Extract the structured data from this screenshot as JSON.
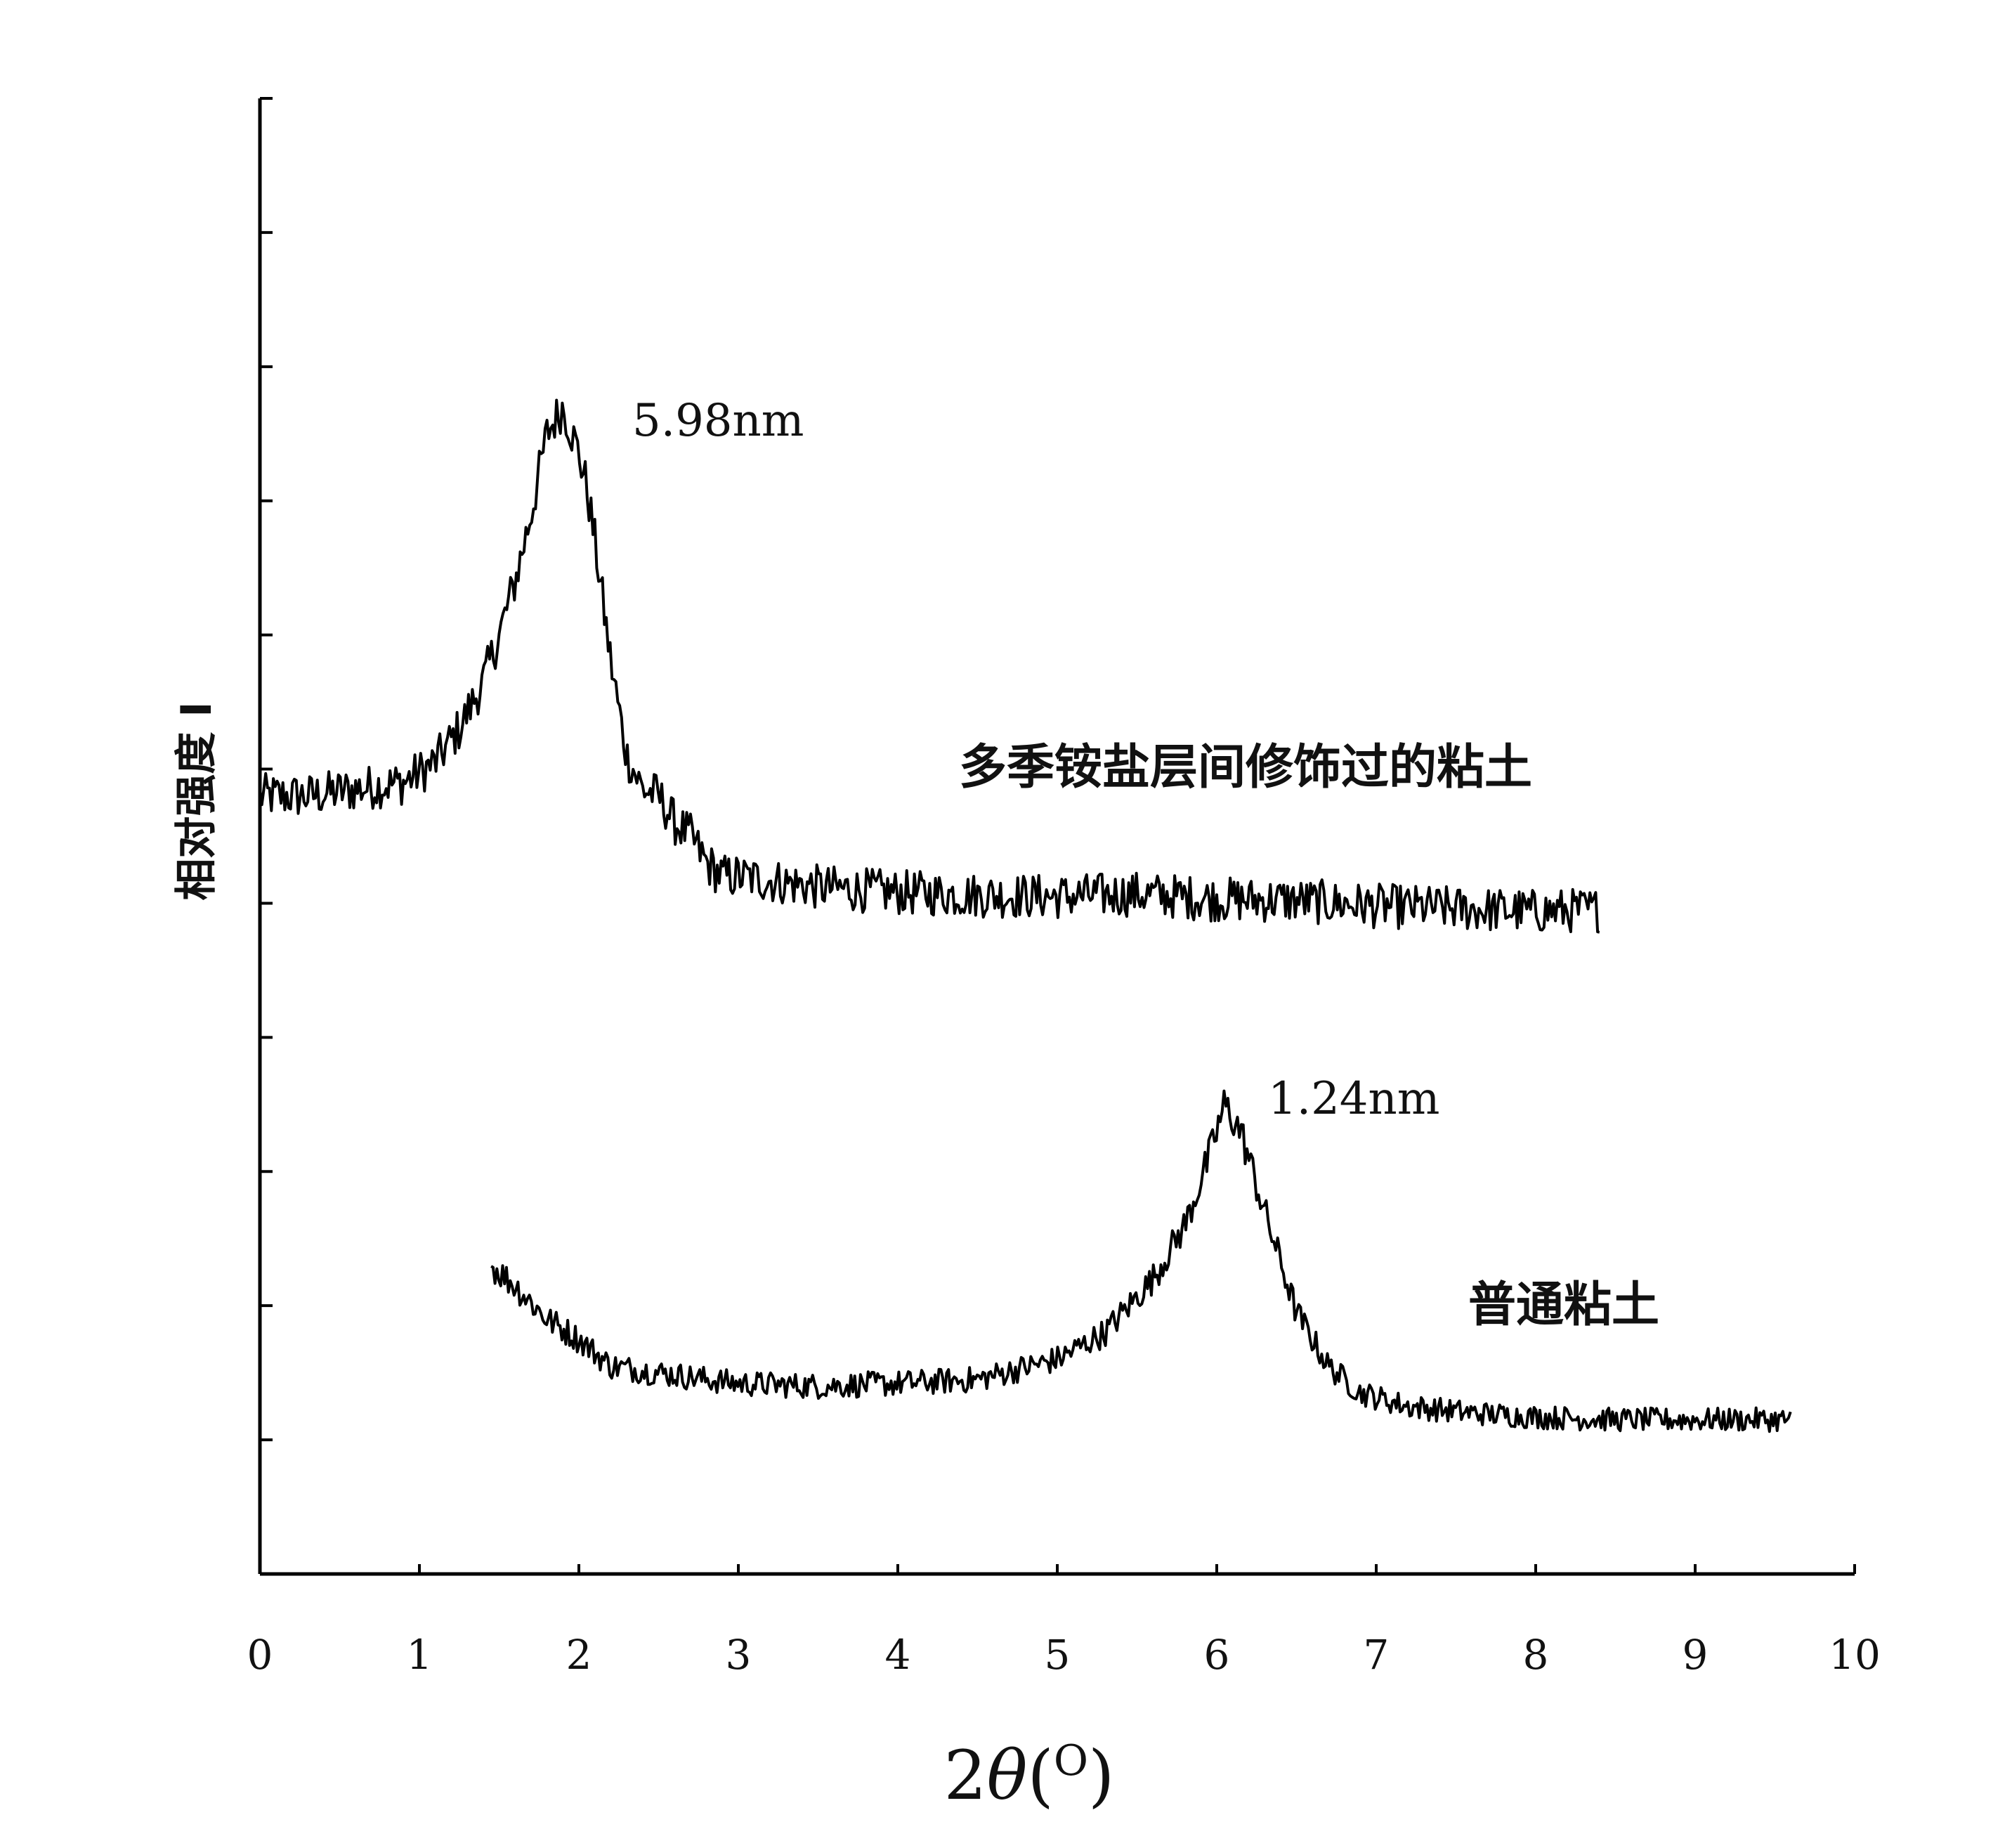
{
  "chart_data": {
    "type": "line",
    "title": "",
    "xlabel": "2θ(O)",
    "ylabel": "相对强度 I",
    "xlim": [
      0,
      10
    ],
    "ylim": [
      0,
      11
    ],
    "x_ticks": [
      "0",
      "1",
      "2",
      "3",
      "4",
      "5",
      "6",
      "7",
      "8",
      "9",
      "10"
    ],
    "y_ticks_count": 11,
    "grid": false,
    "legend": "none",
    "series": [
      {
        "name": "多季铵盐层间修饰过的粘土",
        "label_position": "right",
        "x": [
          0.0,
          0.3,
          0.6,
          0.9,
          1.1,
          1.25,
          1.4,
          1.5,
          1.6,
          1.7,
          1.8,
          1.9,
          2.0,
          2.05,
          2.1,
          2.2,
          2.3,
          2.4,
          2.5,
          2.6,
          2.7,
          2.8,
          2.9,
          3.0,
          3.5,
          4.0,
          4.5,
          5.0,
          5.5,
          6.0,
          6.5,
          7.0,
          7.5,
          8.0,
          8.4
        ],
        "y": [
          5.8,
          5.8,
          5.85,
          5.9,
          6.05,
          6.3,
          6.65,
          7.0,
          7.4,
          7.9,
          8.5,
          8.7,
          8.35,
          8.1,
          7.7,
          6.8,
          6.1,
          5.85,
          5.8,
          5.6,
          5.5,
          5.3,
          5.2,
          5.2,
          5.12,
          5.08,
          5.06,
          5.05,
          5.07,
          5.03,
          5.02,
          4.98,
          4.96,
          4.94,
          4.95
        ],
        "noise": 0.12
      },
      {
        "name": "普通粘土",
        "label_position": "right",
        "x": [
          1.45,
          1.6,
          1.8,
          2.0,
          2.2,
          2.5,
          2.8,
          3.0,
          3.5,
          4.0,
          4.5,
          5.0,
          5.3,
          5.6,
          5.8,
          5.95,
          6.05,
          6.15,
          6.3,
          6.5,
          6.7,
          6.9,
          7.2,
          7.6,
          8.0,
          8.5,
          9.0,
          9.5,
          9.6
        ],
        "y": [
          2.3,
          2.15,
          1.9,
          1.75,
          1.55,
          1.5,
          1.45,
          1.42,
          1.4,
          1.42,
          1.45,
          1.6,
          1.8,
          2.2,
          2.6,
          3.1,
          3.5,
          3.3,
          2.7,
          1.95,
          1.55,
          1.35,
          1.25,
          1.2,
          1.17,
          1.15,
          1.15,
          1.15,
          1.15
        ],
        "noise": 0.14
      }
    ],
    "annotations": [
      {
        "text": "5.98nm",
        "x": 2.45,
        "y": 8.6
      },
      {
        "text": "1.24nm",
        "x": 6.4,
        "y": 3.45
      }
    ]
  }
}
